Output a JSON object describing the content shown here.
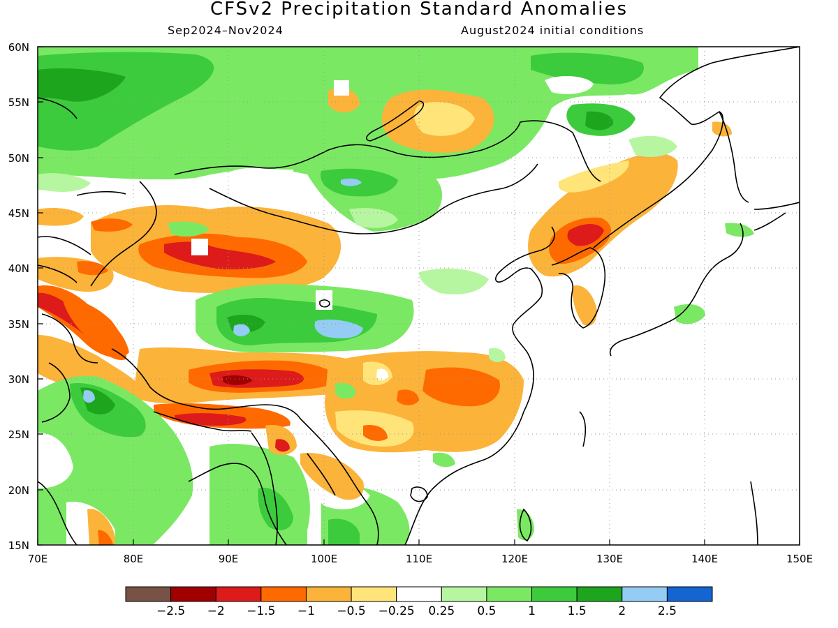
{
  "title": "CFSv2 Precipitation Standard Anomalies",
  "period": "Sep2024–Nov2024",
  "init": "August2024 initial conditions",
  "axes": {
    "lon_labels": [
      "70E",
      "80E",
      "90E",
      "100E",
      "110E",
      "120E",
      "130E",
      "140E",
      "150E"
    ],
    "lat_labels": [
      "60N",
      "55N",
      "50N",
      "45N",
      "40N",
      "35N",
      "30N",
      "25N",
      "20N",
      "15N"
    ],
    "lon_range": [
      70,
      150
    ],
    "lat_range": [
      15,
      60
    ],
    "gridlines": "dotted"
  },
  "colorbar": {
    "colors": [
      "#775245",
      "#a00000",
      "#dd1b1b",
      "#ff6a00",
      "#fbb33a",
      "#ffe47a",
      "#ffffff",
      "#b7f6a0",
      "#7be864",
      "#3ccb3c",
      "#1ea51e",
      "#94ccf4",
      "#1464d2"
    ],
    "labels": [
      "−2.5",
      "−2",
      "−1.5",
      "−1",
      "−0.5",
      "−0.25",
      "0.25",
      "0.5",
      "1",
      "1.5",
      "2",
      "2.5"
    ]
  },
  "colors": {
    "very_wet": "#94ccf4",
    "wet2": "#1ea51e",
    "wet15": "#3ccb3c",
    "wet1": "#7be864",
    "wet05": "#b7f6a0",
    "dry025": "#ffe47a",
    "dry05": "#fbb33a",
    "dry1": "#ff6a00",
    "dry15": "#dd1b1b",
    "dry2": "#a00000",
    "dry25": "#775245"
  }
}
